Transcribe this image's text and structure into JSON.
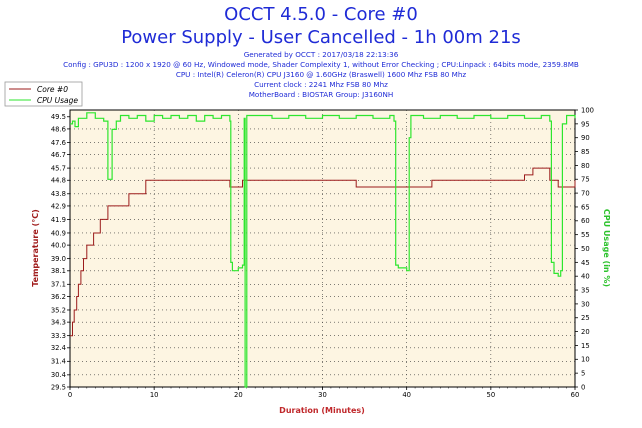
{
  "title_line1": "OCCT 4.5.0 - Core #0",
  "title_line2": "Power Supply - User Cancelled - 1h 00m 21s",
  "info_lines": [
    "Generated by OCCT : 2017/03/18 22:13:36",
    "Config : GPU3D : 1200 x 1920 @ 60 Hz, Windowed mode, Shader Complexity 1, without Error Checking ; CPU:Linpack : 64bits mode, 2359.8MB",
    "CPU : Intel(R) Celeron(R) CPU J3160 @ 1.60GHz (Braswell) 1600 Mhz FSB 80 Mhz",
    "Current clock : 2241 Mhz FSB 80 Mhz",
    "MotherBoard : BIOSTAR Group: J3160NH"
  ],
  "colors": {
    "temperature": "#9b1b1b",
    "cpu_usage": "#2ee62e",
    "plot_bg": "#fdf5e2",
    "title": "#1f2bd6"
  },
  "chart_data": {
    "type": "line",
    "xlabel": "Duration (Minutes)",
    "ylabel_left": "Temperature (°C)",
    "ylabel_right": "CPU Usage (in %)",
    "xlim": [
      0,
      60
    ],
    "ylim_left": [
      29.5,
      50
    ],
    "ylim_right": [
      0,
      100
    ],
    "x_ticks": [
      0,
      10,
      20,
      30,
      40,
      50,
      60
    ],
    "y_ticks_left": [
      29.5,
      30.4,
      31.4,
      32.4,
      33.3,
      34.3,
      35.2,
      36.2,
      37.1,
      38.1,
      39.0,
      40.0,
      40.9,
      41.9,
      42.9,
      43.8,
      44.8,
      45.7,
      46.7,
      47.6,
      48.6,
      49.5
    ],
    "y_ticks_right": [
      0,
      5,
      10,
      15,
      20,
      25,
      30,
      35,
      40,
      45,
      50,
      55,
      60,
      65,
      70,
      75,
      80,
      85,
      90,
      95,
      100
    ],
    "grid": true,
    "legend_position": "top-left",
    "series": [
      {
        "name": "Core #0",
        "axis": "left",
        "x": [
          0,
          0.3,
          0.5,
          0.8,
          1.0,
          1.3,
          1.6,
          2.0,
          2.4,
          2.8,
          3.2,
          3.6,
          4.0,
          4.5,
          5.0,
          6.0,
          7.0,
          8.0,
          8.5,
          9.0,
          10.0,
          15.0,
          18.0,
          19.0,
          19.5,
          20.0,
          20.5,
          21.0,
          25.0,
          30.0,
          33.0,
          34.0,
          35.0,
          36.0,
          37.0,
          38.0,
          39.0,
          40.0,
          41.0,
          42.0,
          43.0,
          45.0,
          48.0,
          50.0,
          52.0,
          53.0,
          54.0,
          55.0,
          56.0,
          57.0,
          58.0,
          59.0,
          60.0
        ],
        "y": [
          33.3,
          34.3,
          35.2,
          36.2,
          37.1,
          38.1,
          39.0,
          40.0,
          40.0,
          40.9,
          40.9,
          41.9,
          41.9,
          42.9,
          42.9,
          42.9,
          43.8,
          43.8,
          43.8,
          44.8,
          44.8,
          44.8,
          44.8,
          44.3,
          44.3,
          44.3,
          44.8,
          44.8,
          44.8,
          44.8,
          44.8,
          44.3,
          44.3,
          44.3,
          44.3,
          44.3,
          44.3,
          44.3,
          44.3,
          44.3,
          44.8,
          44.8,
          44.8,
          44.8,
          44.8,
          44.8,
          45.2,
          45.7,
          45.7,
          44.8,
          44.3,
          44.3,
          44.8
        ]
      },
      {
        "name": "CPU Usage",
        "axis": "right",
        "x": [
          0,
          0.3,
          0.6,
          1.0,
          2.0,
          3.0,
          4.0,
          4.5,
          5.0,
          5.5,
          6.0,
          7.0,
          8.0,
          9.0,
          10.0,
          11.0,
          12.0,
          13.0,
          14.0,
          15.0,
          16.0,
          17.0,
          18.0,
          19.0,
          19.1,
          19.3,
          20.0,
          20.5,
          20.7,
          20.8,
          20.9,
          21.0,
          22.0,
          24.0,
          26.0,
          28.0,
          30.0,
          32.0,
          34.0,
          36.0,
          38.0,
          38.5,
          38.7,
          39.0,
          40.0,
          40.3,
          40.5,
          42.0,
          44.0,
          46.0,
          48.0,
          50.0,
          52.0,
          54.0,
          56.0,
          57.0,
          57.2,
          57.5,
          58.0,
          58.3,
          58.5,
          59.0,
          60.0
        ],
        "y": [
          95,
          96,
          94,
          97,
          99,
          97,
          96,
          75,
          93,
          96,
          98,
          97,
          98,
          96,
          98,
          97,
          98,
          97,
          98,
          96,
          98,
          97,
          98,
          96,
          45,
          42,
          43,
          44,
          97,
          0,
          0,
          98,
          98,
          97,
          98,
          97,
          98,
          97,
          98,
          97,
          98,
          96,
          44,
          43,
          42,
          90,
          98,
          97,
          98,
          97,
          98,
          97,
          98,
          97,
          98,
          96,
          45,
          41,
          40,
          42,
          95,
          98,
          97
        ]
      }
    ]
  }
}
